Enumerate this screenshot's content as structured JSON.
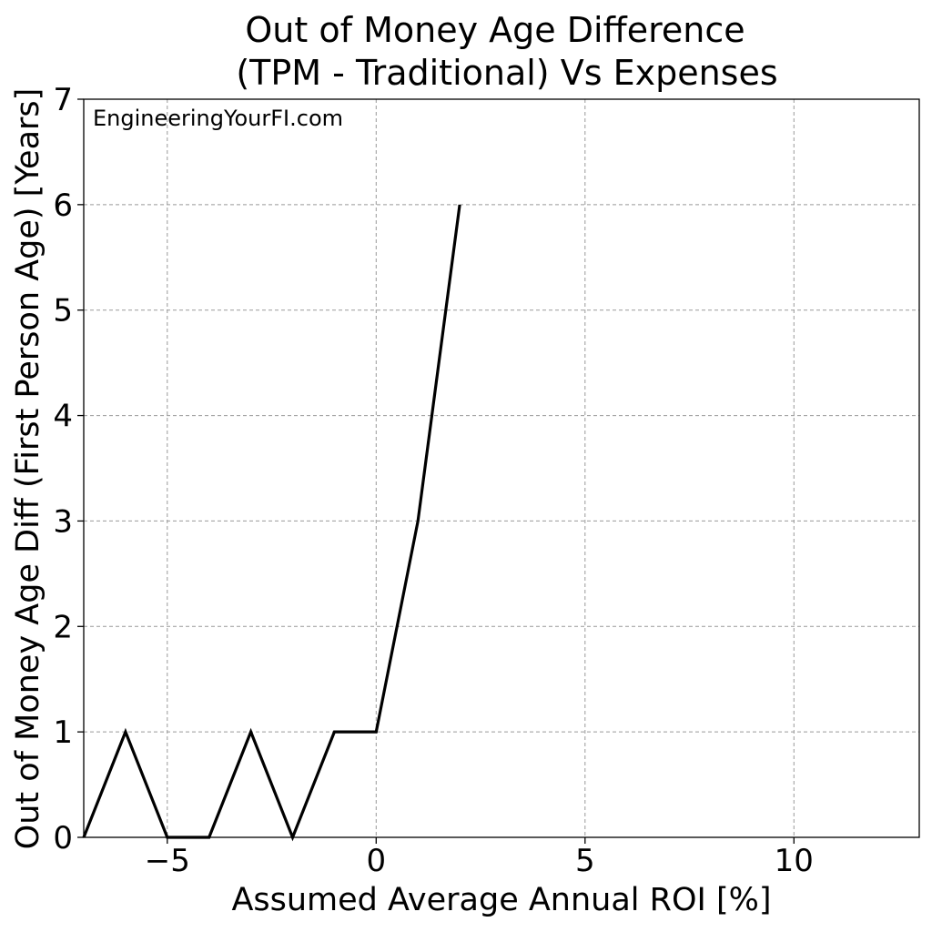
{
  "chart_data": {
    "type": "line",
    "title_line1": "Out of Money Age Difference",
    "title_line2": "(TPM - Traditional) Vs Expenses",
    "xlabel": "Assumed Average Annual ROI [%]",
    "ylabel": "Out of Money Age Diff (First Person Age) [Years]",
    "annotation": "EngineeringYourFI.com",
    "xlim": [
      -7,
      13
    ],
    "ylim": [
      0,
      7
    ],
    "xticks": [
      -5,
      0,
      5,
      10
    ],
    "xtick_labels": [
      "−5",
      "0",
      "5",
      "10"
    ],
    "yticks": [
      0,
      1,
      2,
      3,
      4,
      5,
      6,
      7
    ],
    "ytick_labels": [
      "0",
      "1",
      "2",
      "3",
      "4",
      "5",
      "6",
      "7"
    ],
    "grid": true,
    "series": [
      {
        "color": "#000000",
        "x": [
          -7,
          -6,
          -5,
          -4,
          -3,
          -2,
          -1,
          0,
          1,
          2
        ],
        "y": [
          0,
          1,
          0,
          0,
          1,
          0,
          1,
          1,
          3,
          6
        ]
      }
    ]
  }
}
